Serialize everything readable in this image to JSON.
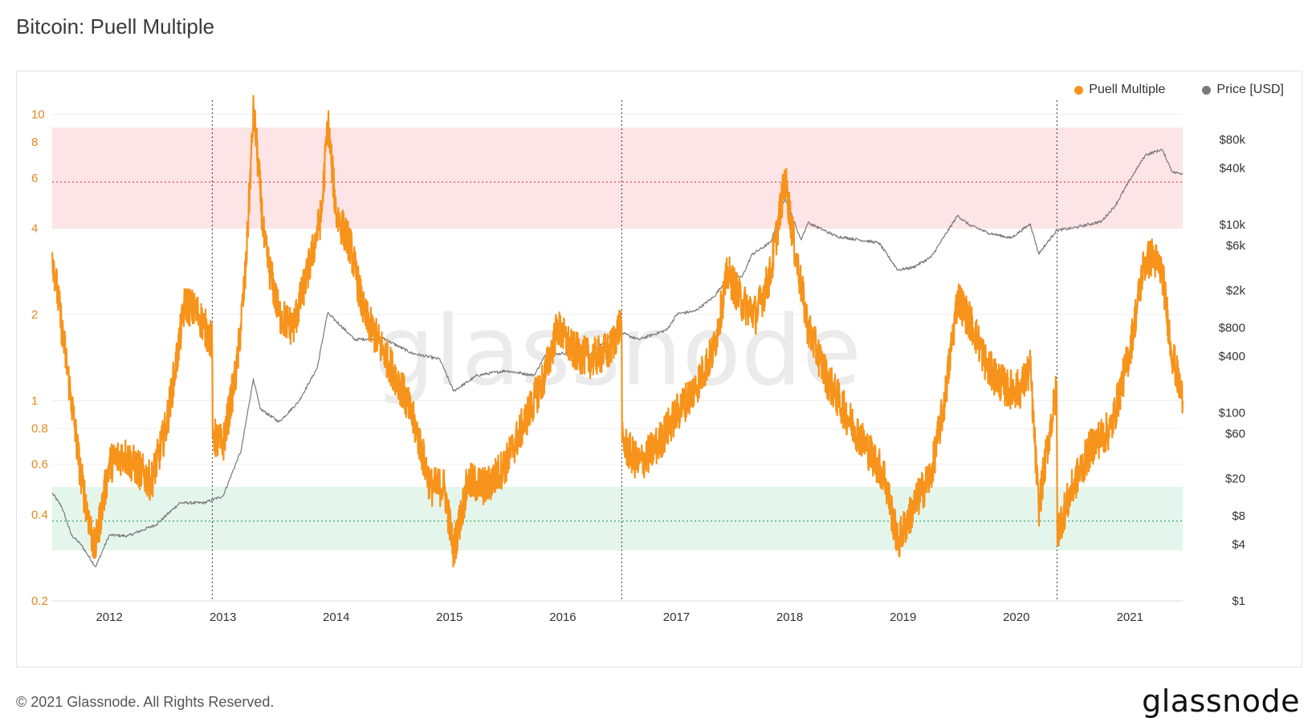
{
  "header": {
    "title": "Bitcoin: Puell Multiple"
  },
  "footer": {
    "copyright": "© 2021 Glassnode. All Rights Reserved.",
    "logo": "glassnode"
  },
  "watermark": "glassnode",
  "colors": {
    "puell": "#f7931a",
    "price": "#7a7a7a",
    "red_band": "#fde4e6",
    "green_band": "#e4f6ec",
    "red_line": "#e84a5a",
    "green_line": "#3aa86b",
    "axis_left_text": "#e08a1c",
    "axis_right_text": "#333333",
    "grid": "#efefef"
  },
  "chart_data": {
    "type": "line",
    "title": "Bitcoin: Puell Multiple",
    "legend": {
      "position": "top-right",
      "entries": [
        "Puell Multiple",
        "Price [USD]"
      ]
    },
    "x_range": [
      "2011-07-01",
      "2021-06-20"
    ],
    "x_ticks": [
      {
        "date": "2012-01-01",
        "label": "2012"
      },
      {
        "date": "2013-01-01",
        "label": "2013"
      },
      {
        "date": "2014-01-01",
        "label": "2014"
      },
      {
        "date": "2015-01-01",
        "label": "2015"
      },
      {
        "date": "2016-01-01",
        "label": "2016"
      },
      {
        "date": "2017-01-01",
        "label": "2017"
      },
      {
        "date": "2018-01-01",
        "label": "2018"
      },
      {
        "date": "2019-01-01",
        "label": "2019"
      },
      {
        "date": "2020-01-01",
        "label": "2020"
      },
      {
        "date": "2021-01-01",
        "label": "2021"
      }
    ],
    "y_left": {
      "scale": "log",
      "range": [
        0.2,
        11.2
      ],
      "ticks": [
        {
          "value": 0.2,
          "label": "0.2"
        },
        {
          "value": 0.4,
          "label": "0.4"
        },
        {
          "value": 0.6,
          "label": "0.6"
        },
        {
          "value": 0.8,
          "label": "0.8"
        },
        {
          "value": 1,
          "label": "1"
        },
        {
          "value": 2,
          "label": "2"
        },
        {
          "value": 4,
          "label": "4"
        },
        {
          "value": 6,
          "label": "6"
        },
        {
          "value": 8,
          "label": "8"
        },
        {
          "value": 10,
          "label": "10"
        }
      ]
    },
    "y_right": {
      "scale": "log",
      "range": [
        1,
        210000
      ],
      "ticks": [
        {
          "value": 1,
          "label": "$1"
        },
        {
          "value": 4,
          "label": "$4"
        },
        {
          "value": 8,
          "label": "$8"
        },
        {
          "value": 20,
          "label": "$20"
        },
        {
          "value": 60,
          "label": "$60"
        },
        {
          "value": 100,
          "label": "$100"
        },
        {
          "value": 400,
          "label": "$400"
        },
        {
          "value": 800,
          "label": "$800"
        },
        {
          "value": 2000,
          "label": "$2k"
        },
        {
          "value": 6000,
          "label": "$6k"
        },
        {
          "value": 10000,
          "label": "$10k"
        },
        {
          "value": 40000,
          "label": "$40k"
        },
        {
          "value": 80000,
          "label": "$80k"
        }
      ]
    },
    "bands": [
      {
        "name": "high",
        "from": 4.0,
        "to": 9.0,
        "mid": 5.8
      },
      {
        "name": "low",
        "from": 0.3,
        "to": 0.5,
        "mid": 0.38
      }
    ],
    "halvings": [
      "2012-11-28",
      "2016-07-09",
      "2020-05-11"
    ],
    "grid": true,
    "series": [
      {
        "name": "Puell Multiple",
        "axis": "left",
        "points": [
          [
            "2011-07-01",
            3.3
          ],
          [
            "2011-08-01",
            1.8
          ],
          [
            "2011-09-01",
            1.0
          ],
          [
            "2011-10-01",
            0.55
          ],
          [
            "2011-11-15",
            0.3
          ],
          [
            "2012-01-01",
            0.6
          ],
          [
            "2012-02-15",
            0.65
          ],
          [
            "2012-04-01",
            0.58
          ],
          [
            "2012-05-15",
            0.52
          ],
          [
            "2012-07-01",
            0.8
          ],
          [
            "2012-08-01",
            1.3
          ],
          [
            "2012-09-01",
            2.2
          ],
          [
            "2012-10-15",
            2.0
          ],
          [
            "2012-11-27",
            1.6
          ],
          [
            "2012-11-29",
            0.75
          ],
          [
            "2013-01-01",
            0.7
          ],
          [
            "2013-02-15",
            1.3
          ],
          [
            "2013-03-15",
            2.8
          ],
          [
            "2013-04-10",
            10.5
          ],
          [
            "2013-05-15",
            3.5
          ],
          [
            "2013-07-01",
            2.0
          ],
          [
            "2013-08-15",
            1.8
          ],
          [
            "2013-10-01",
            2.8
          ],
          [
            "2013-11-15",
            4.5
          ],
          [
            "2013-12-05",
            9.5
          ],
          [
            "2014-01-01",
            4.5
          ],
          [
            "2014-02-15",
            3.5
          ],
          [
            "2014-04-01",
            2.0
          ],
          [
            "2014-06-01",
            1.5
          ],
          [
            "2014-08-01",
            1.1
          ],
          [
            "2014-09-15",
            0.8
          ],
          [
            "2014-11-01",
            0.5
          ],
          [
            "2014-12-15",
            0.5
          ],
          [
            "2015-01-14",
            0.3
          ],
          [
            "2015-03-01",
            0.52
          ],
          [
            "2015-05-01",
            0.5
          ],
          [
            "2015-07-01",
            0.6
          ],
          [
            "2015-09-01",
            0.85
          ],
          [
            "2015-11-01",
            1.2
          ],
          [
            "2015-12-15",
            1.8
          ],
          [
            "2016-02-01",
            1.5
          ],
          [
            "2016-04-01",
            1.4
          ],
          [
            "2016-06-01",
            1.5
          ],
          [
            "2016-07-08",
            1.9
          ],
          [
            "2016-07-10",
            0.72
          ],
          [
            "2016-09-01",
            0.6
          ],
          [
            "2016-11-01",
            0.7
          ],
          [
            "2017-01-01",
            0.9
          ],
          [
            "2017-03-01",
            1.1
          ],
          [
            "2017-05-01",
            1.5
          ],
          [
            "2017-06-15",
            2.8
          ],
          [
            "2017-08-01",
            2.2
          ],
          [
            "2017-09-15",
            2.0
          ],
          [
            "2017-11-01",
            2.8
          ],
          [
            "2017-12-17",
            6.0
          ],
          [
            "2018-01-15",
            3.5
          ],
          [
            "2018-03-01",
            1.8
          ],
          [
            "2018-05-01",
            1.2
          ],
          [
            "2018-07-01",
            0.9
          ],
          [
            "2018-09-01",
            0.7
          ],
          [
            "2018-11-01",
            0.55
          ],
          [
            "2018-12-15",
            0.32
          ],
          [
            "2019-02-15",
            0.45
          ],
          [
            "2019-04-01",
            0.55
          ],
          [
            "2019-05-15",
            1.0
          ],
          [
            "2019-06-26",
            2.3
          ],
          [
            "2019-08-15",
            1.8
          ],
          [
            "2019-10-01",
            1.3
          ],
          [
            "2019-12-01",
            1.1
          ],
          [
            "2020-01-15",
            1.1
          ],
          [
            "2020-02-15",
            1.3
          ],
          [
            "2020-03-13",
            0.42
          ],
          [
            "2020-04-15",
            0.75
          ],
          [
            "2020-05-10",
            1.1
          ],
          [
            "2020-05-12",
            0.35
          ],
          [
            "2020-07-01",
            0.5
          ],
          [
            "2020-09-01",
            0.7
          ],
          [
            "2020-11-01",
            0.8
          ],
          [
            "2021-01-01",
            1.5
          ],
          [
            "2021-02-15",
            3.0
          ],
          [
            "2021-03-15",
            3.2
          ],
          [
            "2021-04-15",
            2.8
          ],
          [
            "2021-05-15",
            1.5
          ],
          [
            "2021-06-20",
            1.0
          ]
        ]
      },
      {
        "name": "Price [USD]",
        "axis": "right",
        "points": [
          [
            "2011-07-01",
            14
          ],
          [
            "2011-08-01",
            10
          ],
          [
            "2011-09-01",
            5
          ],
          [
            "2011-10-01",
            4
          ],
          [
            "2011-11-18",
            2.3
          ],
          [
            "2012-01-01",
            5
          ],
          [
            "2012-03-01",
            4.9
          ],
          [
            "2012-06-01",
            6.5
          ],
          [
            "2012-08-15",
            11
          ],
          [
            "2012-11-01",
            11
          ],
          [
            "2013-01-01",
            13
          ],
          [
            "2013-03-01",
            40
          ],
          [
            "2013-04-09",
            230
          ],
          [
            "2013-05-01",
            110
          ],
          [
            "2013-07-01",
            80
          ],
          [
            "2013-09-01",
            130
          ],
          [
            "2013-11-01",
            300
          ],
          [
            "2013-12-04",
            1150
          ],
          [
            "2014-01-15",
            850
          ],
          [
            "2014-03-01",
            600
          ],
          [
            "2014-06-01",
            620
          ],
          [
            "2014-09-01",
            430
          ],
          [
            "2014-12-01",
            370
          ],
          [
            "2015-01-14",
            170
          ],
          [
            "2015-04-01",
            250
          ],
          [
            "2015-07-01",
            280
          ],
          [
            "2015-10-01",
            250
          ],
          [
            "2015-11-04",
            400
          ],
          [
            "2016-01-01",
            430
          ],
          [
            "2016-04-01",
            420
          ],
          [
            "2016-06-17",
            750
          ],
          [
            "2016-09-01",
            600
          ],
          [
            "2016-12-01",
            760
          ],
          [
            "2017-01-04",
            1130
          ],
          [
            "2017-03-01",
            1200
          ],
          [
            "2017-05-01",
            1700
          ],
          [
            "2017-06-15",
            2700
          ],
          [
            "2017-08-01",
            2800
          ],
          [
            "2017-09-01",
            4800
          ],
          [
            "2017-11-01",
            6500
          ],
          [
            "2017-12-17",
            19500
          ],
          [
            "2018-02-06",
            6900
          ],
          [
            "2018-03-01",
            10500
          ],
          [
            "2018-06-01",
            7500
          ],
          [
            "2018-08-01",
            7000
          ],
          [
            "2018-10-15",
            6400
          ],
          [
            "2018-12-15",
            3300
          ],
          [
            "2019-02-01",
            3500
          ],
          [
            "2019-04-01",
            4500
          ],
          [
            "2019-06-26",
            12500
          ],
          [
            "2019-08-01",
            10000
          ],
          [
            "2019-10-01",
            8200
          ],
          [
            "2019-12-15",
            7200
          ],
          [
            "2020-02-15",
            10200
          ],
          [
            "2020-03-13",
            4900
          ],
          [
            "2020-05-10",
            8700
          ],
          [
            "2020-07-01",
            9200
          ],
          [
            "2020-10-01",
            10800
          ],
          [
            "2020-11-15",
            16000
          ],
          [
            "2021-01-01",
            30000
          ],
          [
            "2021-02-20",
            55000
          ],
          [
            "2021-04-14",
            63000
          ],
          [
            "2021-05-19",
            36000
          ],
          [
            "2021-06-20",
            35000
          ]
        ]
      }
    ]
  }
}
